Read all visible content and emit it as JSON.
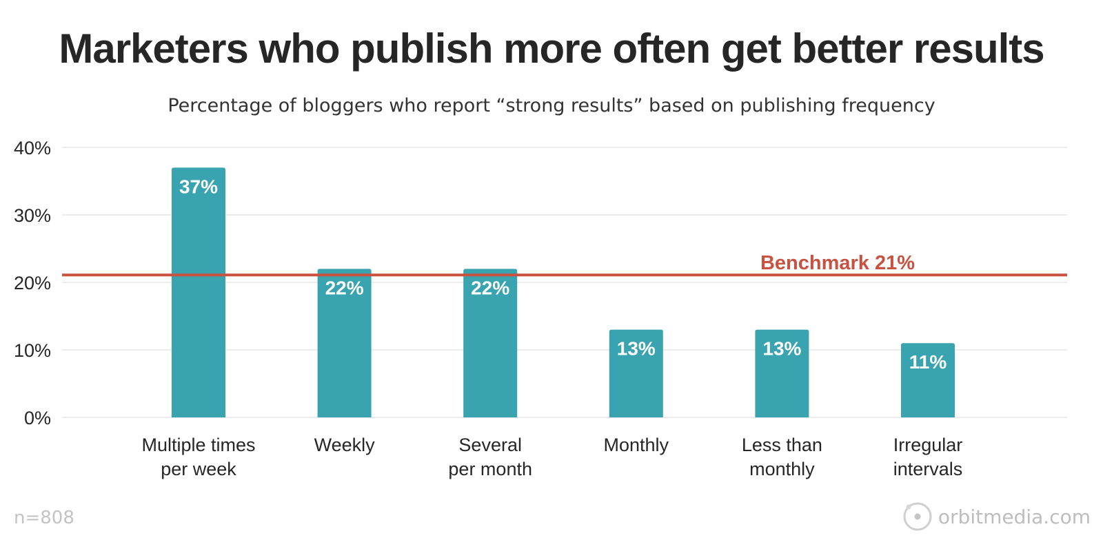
{
  "chart_data": {
    "type": "bar",
    "title": "Marketers who publish more often get better results",
    "subtitle": "Percentage of bloggers who report “strong results” based on publishing frequency",
    "categories": [
      [
        "Multiple times",
        "per week"
      ],
      [
        "Weekly"
      ],
      [
        "Several",
        "per month"
      ],
      [
        "Monthly"
      ],
      [
        "Less than",
        "monthly"
      ],
      [
        "Irregular",
        "intervals"
      ]
    ],
    "values": [
      37,
      22,
      22,
      13,
      13,
      11
    ],
    "value_labels": [
      "37%",
      "22%",
      "22%",
      "13%",
      "13%",
      "11%"
    ],
    "y_ticks": [
      0,
      10,
      20,
      30,
      40
    ],
    "y_tick_labels": [
      "0%",
      "10%",
      "20%",
      "30%",
      "40%"
    ],
    "ylim": [
      0,
      40
    ],
    "grid": true,
    "benchmark": {
      "value": 21,
      "label": "Benchmark 21%"
    },
    "colors": {
      "bar": "#3aa3b0",
      "benchmark": "#c8523f",
      "grid": "#e6e6e6",
      "text": "#262626"
    }
  },
  "footnote": "n=808",
  "brand": {
    "text": "orbitmedia.com",
    "icon": "orbit-logo-icon"
  }
}
